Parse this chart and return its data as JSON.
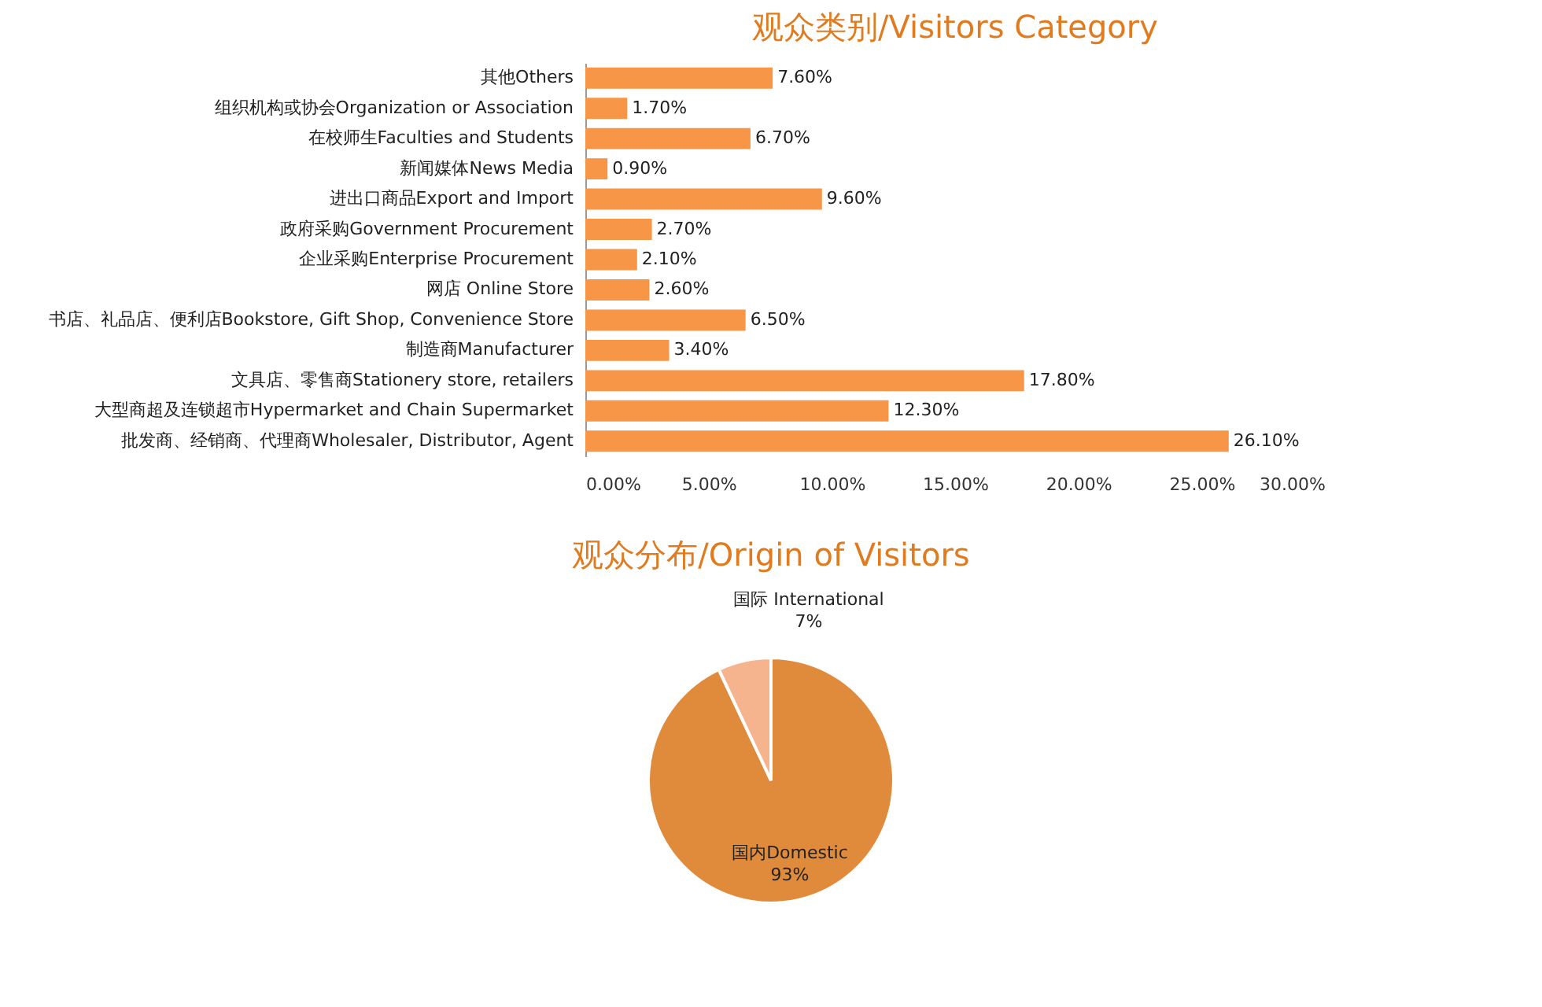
{
  "chart_data": [
    {
      "type": "bar",
      "orientation": "horizontal",
      "title": "观众类别/Visitors Category",
      "categories": [
        "其他Others",
        "组织机构或协会Organization or Association",
        "在校师生Faculties and Students",
        "新闻媒体News Media",
        "进出口商品Export and Import",
        "政府采购Government Procurement",
        "企业采购Enterprise Procurement",
        "网店 Online Store",
        "书店、礼品店、便利店Bookstore, Gift Shop, Convenience Store",
        "制造商Manufacturer",
        "文具店、零售商Stationery store, retailers",
        "大型商超及连锁超市Hypermarket and Chain Supermarket",
        "批发商、经销商、代理商Wholesaler, Distributor, Agent"
      ],
      "values": [
        7.6,
        1.7,
        6.7,
        0.9,
        9.6,
        2.7,
        2.1,
        2.6,
        6.5,
        3.4,
        17.8,
        12.3,
        26.1
      ],
      "value_labels": [
        "7.60%",
        "1.70%",
        "6.70%",
        "0.90%",
        "9.60%",
        "2.70%",
        "2.10%",
        "2.60%",
        "6.50%",
        "3.40%",
        "17.80%",
        "12.30%",
        "26.10%"
      ],
      "color": "#f79646",
      "xlim": [
        0,
        30
      ],
      "xticks": [
        {
          "value": 0,
          "label": "0.00%"
        },
        {
          "value": 5,
          "label": "5.00%"
        },
        {
          "value": 10,
          "label": "10.00%"
        },
        {
          "value": 15,
          "label": "15.00%"
        },
        {
          "value": 20,
          "label": "20.00%"
        },
        {
          "value": 25,
          "label": "25.00%"
        },
        {
          "value": 30,
          "label": "30.00%"
        }
      ],
      "grid": false
    },
    {
      "type": "pie",
      "title": "观众分布/Origin of Visitors",
      "categories": [
        "国内Domestic",
        "国际 International"
      ],
      "values": [
        93,
        7
      ],
      "value_labels": [
        "93%",
        "7%"
      ],
      "colors": [
        "#e08a3c",
        "#f6b48e"
      ]
    }
  ]
}
